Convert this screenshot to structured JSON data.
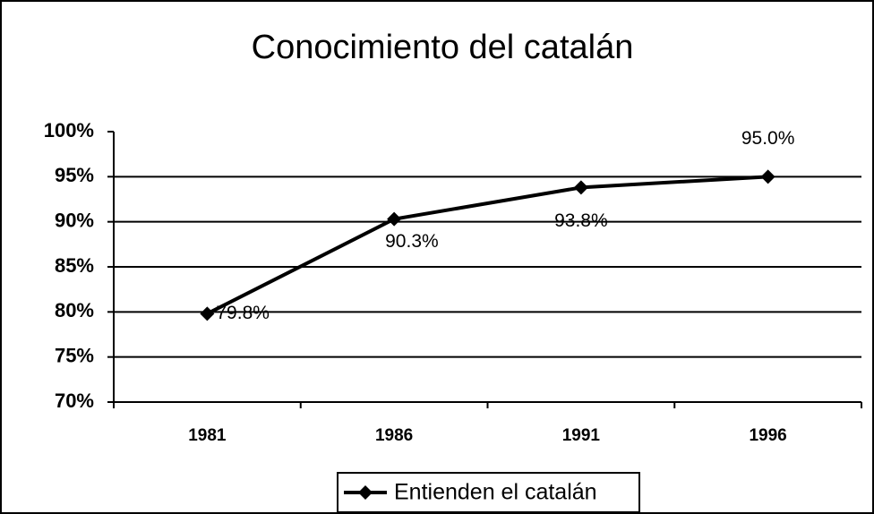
{
  "chart_data": {
    "type": "line",
    "title": "Conocimiento del catalán",
    "categories": [
      "1981",
      "1986",
      "1991",
      "1996"
    ],
    "series": [
      {
        "name": "Entienden el catalán",
        "color": "#000000",
        "values": [
          79.8,
          90.3,
          93.8,
          95.0
        ],
        "value_labels": [
          "79.8%",
          "90.3%",
          "93.8%",
          "95.0%"
        ]
      }
    ],
    "ylim": [
      70,
      100
    ],
    "yticks": [
      {
        "value": 70,
        "label": "70%"
      },
      {
        "value": 75,
        "label": "75%"
      },
      {
        "value": 80,
        "label": "80%"
      },
      {
        "value": 85,
        "label": "85%"
      },
      {
        "value": 90,
        "label": "90%"
      },
      {
        "value": 95,
        "label": "95%"
      },
      {
        "value": 100,
        "label": "100%"
      }
    ],
    "grid": true,
    "legend": "bottom"
  }
}
